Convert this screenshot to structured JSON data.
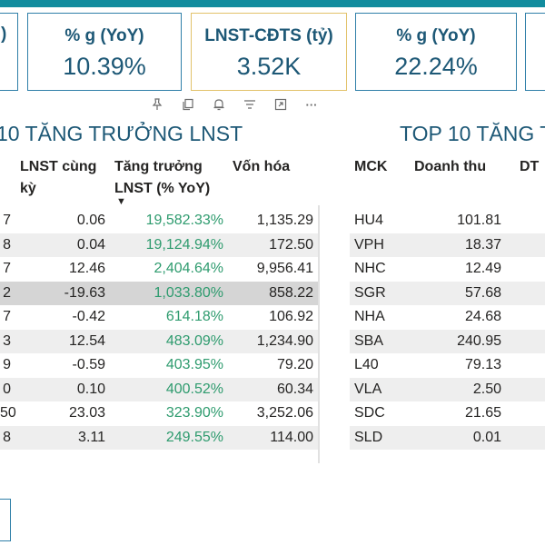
{
  "cards": [
    {
      "label": ")",
      "value": ""
    },
    {
      "label": "% g (YoY)",
      "value": "10.39%"
    },
    {
      "label": "LNST-CĐTS (tỷ)",
      "value": "3.52K"
    },
    {
      "label": "% g (YoY)",
      "value": "22.24%"
    }
  ],
  "toolbar": {
    "icons": [
      "pin-icon",
      "copy-icon",
      "bell-icon",
      "filter-icon",
      "focus-mode-icon",
      "more-options-icon"
    ],
    "more_label": "···"
  },
  "left_table": {
    "title": "10 TĂNG TRƯỞNG LNST",
    "headers": {
      "prev": "LNST cùng kỳ",
      "prev_line1": "LNST cùng",
      "prev_line2": "kỳ",
      "growth_line1": "Tăng trưởng",
      "growth_line2": "LNST (% YoY)",
      "cap": "Vốn hóa"
    },
    "rows": [
      {
        "first": "7",
        "prev": "0.06",
        "growth": "19,582.33%",
        "cap": "1,135.29"
      },
      {
        "first": "8",
        "prev": "0.04",
        "growth": "19,124.94%",
        "cap": "172.50"
      },
      {
        "first": "7",
        "prev": "12.46",
        "growth": "2,404.64%",
        "cap": "9,956.41"
      },
      {
        "first": "2",
        "prev": "-19.63",
        "growth": "1,033.80%",
        "cap": "858.22"
      },
      {
        "first": "7",
        "prev": "-0.42",
        "growth": "614.18%",
        "cap": "106.92"
      },
      {
        "first": "3",
        "prev": "12.54",
        "growth": "483.09%",
        "cap": "1,234.90"
      },
      {
        "first": "9",
        "prev": "-0.59",
        "growth": "403.95%",
        "cap": "79.20"
      },
      {
        "first": "0",
        "prev": "0.10",
        "growth": "400.52%",
        "cap": "60.34"
      },
      {
        "first": "50",
        "prev": "23.03",
        "growth": "323.90%",
        "cap": "3,252.06"
      },
      {
        "first": "8",
        "prev": "3.11",
        "growth": "249.55%",
        "cap": "114.00"
      }
    ]
  },
  "right_table": {
    "title": "TOP 10 TĂNG T",
    "headers": {
      "mck": "MCK",
      "revenue": "Doanh thu",
      "dt": "DT"
    },
    "rows": [
      {
        "mck": "HU4",
        "revenue": "101.81"
      },
      {
        "mck": "VPH",
        "revenue": "18.37"
      },
      {
        "mck": "NHC",
        "revenue": "12.49"
      },
      {
        "mck": "SGR",
        "revenue": "57.68"
      },
      {
        "mck": "NHA",
        "revenue": "24.68"
      },
      {
        "mck": "SBA",
        "revenue": "240.95"
      },
      {
        "mck": "L40",
        "revenue": "79.13"
      },
      {
        "mck": "VLA",
        "revenue": "2.50"
      },
      {
        "mck": "SDC",
        "revenue": "21.65"
      },
      {
        "mck": "SLD",
        "revenue": "0.01"
      }
    ]
  },
  "colors": {
    "accent": "#1d5876",
    "border": "#2f7fa8",
    "active_border": "#e2c26a",
    "growth_green": "#2e9b6e",
    "topbar": "#118c9e"
  }
}
